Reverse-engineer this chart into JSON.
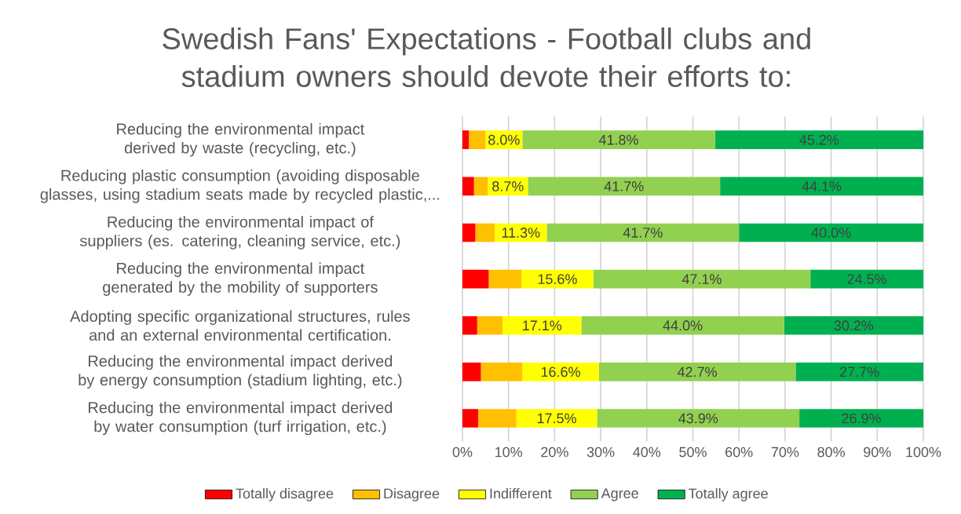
{
  "chart_data": {
    "type": "bar",
    "orientation": "horizontal",
    "stacked": true,
    "title": "Swedish Fans' Expectations - Football clubs and stadium owners should devote their efforts to:",
    "categories": [
      "Reducing the environmental impact derived by waste (recycling, etc.)",
      "Reducing plastic consumption (avoiding disposable glasses, using stadium seats made by recycled plastic,...",
      "Reducing the environmental impact of suppliers (es. catering, cleaning service, etc.)",
      "Reducing the environmental impact generated by the mobility of supporters",
      "Adopting specific organizational structures, rules and an external environmental certification.",
      "Reducing the environmental impact derived by energy consumption (stadium lighting, etc.)",
      "Reducing the environmental impact derived by water consumption (turf irrigation, etc.)"
    ],
    "series": [
      {
        "name": "Totally disagree",
        "color": "#ff0000",
        "values": [
          1.4,
          2.5,
          2.8,
          5.7,
          3.2,
          4.0,
          3.4
        ]
      },
      {
        "name": "Disagree",
        "color": "#ffc000",
        "values": [
          3.6,
          3.0,
          4.2,
          7.1,
          5.5,
          9.0,
          8.3
        ]
      },
      {
        "name": "Indifferent",
        "color": "#ffff00",
        "values": [
          8.0,
          8.7,
          11.3,
          15.6,
          17.1,
          16.6,
          17.5
        ],
        "value_labels": [
          "8.0%",
          "8.7%",
          "11.3%",
          "15.6%",
          "17.1%",
          "16.6%",
          "17.5%"
        ]
      },
      {
        "name": "Agree",
        "color": "#92d050",
        "values": [
          41.8,
          41.7,
          41.7,
          47.1,
          44.0,
          42.7,
          43.9
        ],
        "value_labels": [
          "41.8%",
          "41.7%",
          "41.7%",
          "47.1%",
          "44.0%",
          "42.7%",
          "43.9%"
        ]
      },
      {
        "name": "Totally agree",
        "color": "#00b050",
        "values": [
          45.2,
          44.1,
          40.0,
          24.5,
          30.2,
          27.7,
          26.9
        ],
        "value_labels": [
          "45.2%",
          "44.1%",
          "40.0%",
          "24.5%",
          "30.2%",
          "27.7%",
          "26.9%"
        ]
      }
    ],
    "xlim": [
      0,
      100
    ],
    "xticks": [
      {
        "value": 0,
        "label": "0%"
      },
      {
        "value": 10,
        "label": "10%"
      },
      {
        "value": 20,
        "label": "20%"
      },
      {
        "value": 30,
        "label": "30%"
      },
      {
        "value": 40,
        "label": "40%"
      },
      {
        "value": 50,
        "label": "50%"
      },
      {
        "value": 60,
        "label": "60%"
      },
      {
        "value": 70,
        "label": "70%"
      },
      {
        "value": 80,
        "label": "80%"
      },
      {
        "value": 90,
        "label": "90%"
      },
      {
        "value": 100,
        "label": "100%"
      }
    ],
    "grid": "x",
    "legend": "bottom"
  }
}
